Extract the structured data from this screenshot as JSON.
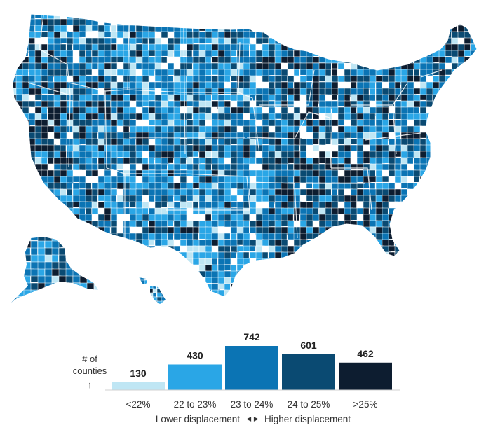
{
  "map": {
    "regions": [
      "contiguous-us",
      "alaska",
      "hawaii"
    ],
    "fill_colors": [
      "#bfe6f4",
      "#2aa6e6",
      "#0b74b4",
      "#0a4a72",
      "#0d1d30"
    ],
    "boundary_color": "#ffffff",
    "missing_color": "#ffffff"
  },
  "legend": {
    "y_label_line1": "# of",
    "y_label_line2": "counties",
    "y_arrow": "↑",
    "footer_left": "Lower displacement",
    "footer_arrows": "◂ ▸",
    "footer_right": "Higher displacement"
  },
  "chart_data": {
    "type": "bar",
    "categories": [
      "<22%",
      "22 to 23%",
      "23 to 24%",
      "24 to 25%",
      ">25%"
    ],
    "values": [
      130,
      430,
      742,
      601,
      462
    ],
    "colors": [
      "#bfe6f4",
      "#2aa6e6",
      "#0b74b4",
      "#0a4a72",
      "#0d1d30"
    ],
    "ylim": [
      0,
      742
    ],
    "grid": false,
    "data_labels": true,
    "title": "",
    "xlabel": "",
    "ylabel": "# of counties"
  }
}
